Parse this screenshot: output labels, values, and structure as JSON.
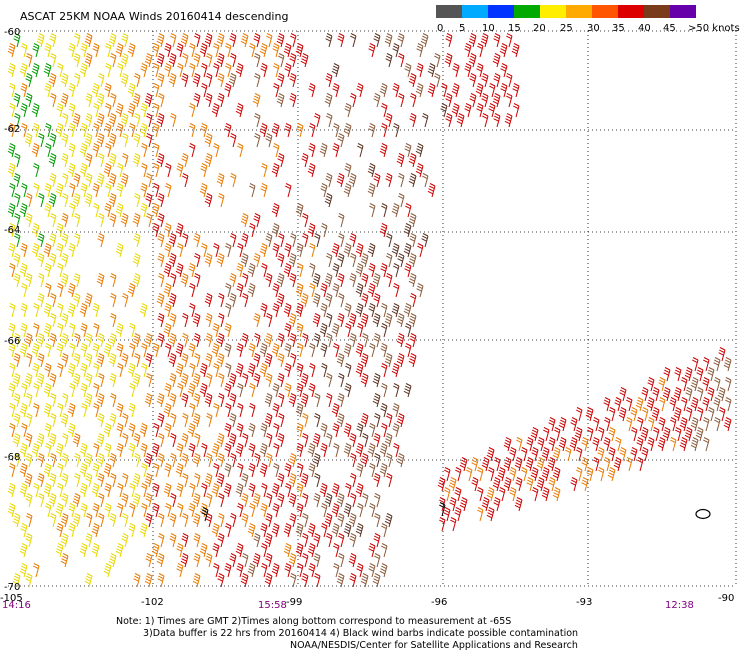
{
  "title": "ASCAT 25KM NOAA Winds 20160414 descending",
  "legend": {
    "labels": [
      "0",
      "5",
      "10",
      "15",
      "20",
      "25",
      "30",
      "35",
      "40",
      "45",
      ">50 knots"
    ],
    "colors": [
      "#555555",
      "#00aaff",
      "#0033ff",
      "#00aa00",
      "#ffee00",
      "#ffaa00",
      "#ff5500",
      "#dd0000",
      "#7a3b1a",
      "#ff00ff",
      "#6600aa"
    ]
  },
  "lat_labels": [
    "-60",
    "-62",
    "-64",
    "-66",
    "-68",
    "-70"
  ],
  "lon_labels": [
    "-105",
    "-102",
    "-99",
    "-96",
    "-93",
    "-90"
  ],
  "times": [
    "14:16",
    "15:58",
    "12:38"
  ],
  "notes": {
    "line1": "Note: 1) Times are GMT 2)Times along bottom correspond to measurement at -65S",
    "line2": "3)Data buffer is 22 hrs from 20160414 4) Black wind barbs indicate possible contamination",
    "line3": "NOAA/NESDIS/Center for Satellite Applications and Research"
  },
  "barb_colors": {
    "green": "#009900",
    "yellow": "#e8d800",
    "orange": "#e87a00",
    "red": "#cc0000",
    "brown": "#8a5a3a",
    "dark": "#5a3020"
  }
}
